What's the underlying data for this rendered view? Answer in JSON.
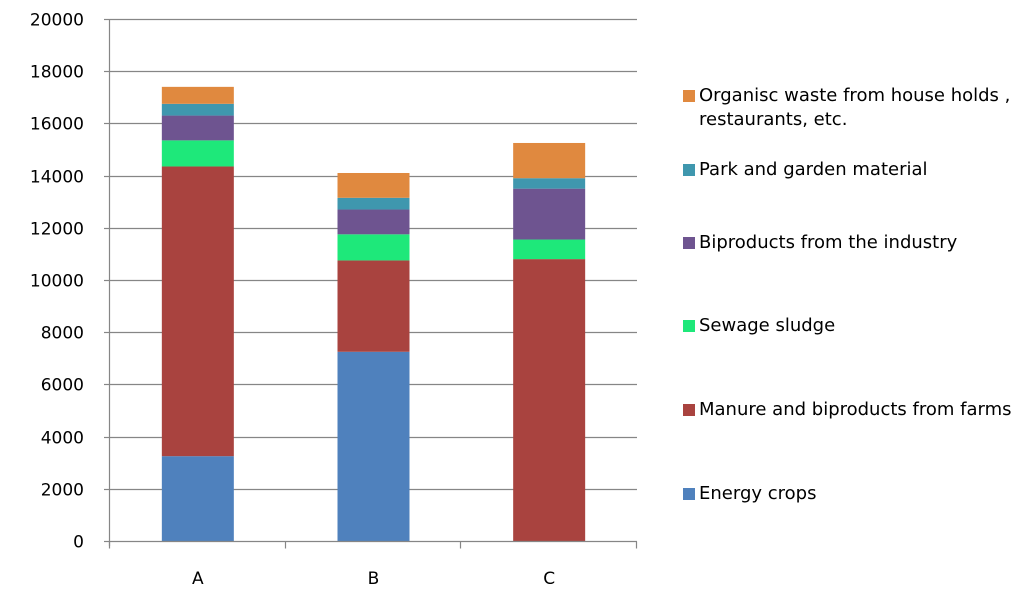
{
  "chart_data": {
    "type": "bar",
    "stacked": true,
    "categories": [
      "A",
      "B",
      "C"
    ],
    "ylim": [
      0,
      20000
    ],
    "yticks": [
      0,
      2000,
      4000,
      6000,
      8000,
      10000,
      12000,
      14000,
      16000,
      18000,
      20000
    ],
    "grid": true,
    "legend_position": "right",
    "series": [
      {
        "name": "Energy crops",
        "color": "#4F81BD",
        "values": [
          3250,
          7250,
          0
        ]
      },
      {
        "name": "Manure and biproducts from farms",
        "color": "#A9433F",
        "values": [
          11100,
          3500,
          10800
        ]
      },
      {
        "name": "Sewage sludge",
        "color": "#1EE87A",
        "values": [
          1000,
          1000,
          750
        ]
      },
      {
        "name": "Biproducts from the industry",
        "color": "#6E5490",
        "values": [
          950,
          950,
          1950
        ]
      },
      {
        "name": "Park and garden material",
        "color": "#3F97AE",
        "values": [
          450,
          450,
          400
        ]
      },
      {
        "name": "Organisc waste from house holds , restaurants, etc.",
        "color": "#E0893F",
        "values": [
          650,
          950,
          1350
        ]
      }
    ]
  }
}
